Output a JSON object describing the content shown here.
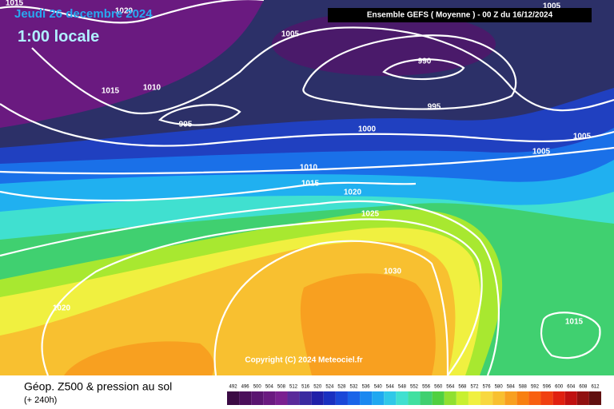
{
  "header": {
    "date": "Jeudi 26 decembre 2024",
    "time": "1:00 locale",
    "model": "Ensemble GEFS  ( Moyenne )  -  00 Z du 16/12/2024"
  },
  "isobar_labels": [
    "1015",
    "1020",
    "1005",
    "990",
    "1015",
    "1010",
    "995",
    "995",
    "1000",
    "1005",
    "1005",
    "1005",
    "1010",
    "1015",
    "1020",
    "1025",
    "1030",
    "1020",
    "1015"
  ],
  "copyright": "Copyright (C) 2024 Meteociel.fr",
  "footer": {
    "title": "Géop. Z500 & pression au sol",
    "lead": "(+ 240h)"
  },
  "legend": {
    "values": [
      492,
      496,
      500,
      504,
      508,
      512,
      516,
      520,
      524,
      528,
      532,
      536,
      540,
      544,
      548,
      552,
      556,
      560,
      564,
      568,
      572,
      576,
      580,
      584,
      588,
      592,
      596,
      600,
      604,
      608,
      612
    ],
    "colors": [
      "#3b0b44",
      "#4b0f5a",
      "#5a1570",
      "#6a1a80",
      "#7a2090",
      "#5a2a9a",
      "#3a2aa0",
      "#2020a8",
      "#1a30c0",
      "#1a48d8",
      "#1a64e8",
      "#1a88f0",
      "#20a8f0",
      "#30c8e8",
      "#40e0d0",
      "#40e0a0",
      "#40d070",
      "#50d040",
      "#90e030",
      "#c8f030",
      "#f0f040",
      "#f8d840",
      "#f8c030",
      "#f8a020",
      "#f88010",
      "#f86010",
      "#f04010",
      "#e02010",
      "#c01010",
      "#901010",
      "#601010"
    ]
  }
}
